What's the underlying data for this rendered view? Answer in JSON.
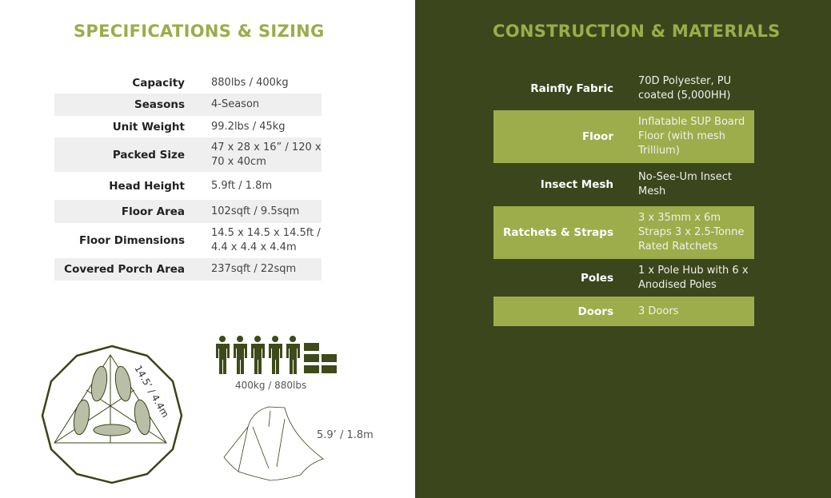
{
  "specs": {
    "title": "SPECIFICATIONS & SIZING",
    "rows": [
      {
        "label": "Capacity",
        "value": "880lbs / 400kg"
      },
      {
        "label": "Seasons",
        "value": "4-Season"
      },
      {
        "label": "Unit Weight",
        "value": "99.2lbs / 45kg"
      },
      {
        "label": "Packed Size",
        "value": "47 x 28 x 16” / 120 x 70 x 40cm"
      },
      {
        "label": "Head Height",
        "value": "5.9ft / 1.8m"
      },
      {
        "label": "Floor Area",
        "value": "102sqft / 9.5sqm"
      },
      {
        "label": "Floor Dimensions",
        "value": "14.5 x 14.5 x 14.5ft / 4.4 x 4.4 x 4.4m"
      },
      {
        "label": "Covered Porch Area",
        "value": "237sqft / 22sqm"
      }
    ]
  },
  "construction": {
    "title": "CONSTRUCTION & MATERIALS",
    "rows": [
      {
        "label": "Rainfly Fabric",
        "value": "70D Polyester, PU coated (5,000HH)"
      },
      {
        "label": "Floor",
        "value": "Inflatable SUP Board Floor (with mesh Trillium)"
      },
      {
        "label": "Insect Mesh",
        "value": "No-See-Um Insect Mesh"
      },
      {
        "label": "Ratchets & Straps",
        "value": "3 x 35mm x 6m Straps 3 x 2.5-Tonne Rated Ratchets"
      },
      {
        "label": "Poles",
        "value": "1 x  Pole Hub with 6 x Anodised Poles"
      },
      {
        "label": "Doors",
        "value": "3 Doors"
      }
    ]
  },
  "diagrams": {
    "floor_label": "14.5’ / 4.4m",
    "capacity_label": "400kg / 880lbs",
    "height_label": "5.9’ / 1.8m"
  },
  "colors": {
    "accent": "#9aad4a",
    "dark_panel": "#3c461d",
    "row_light": "#9dad4b"
  }
}
